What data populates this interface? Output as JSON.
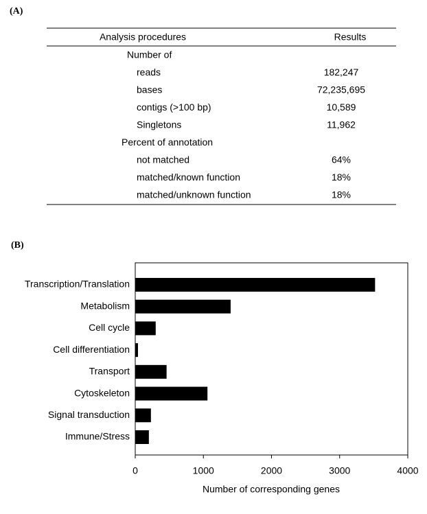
{
  "panels": {
    "a": "(A)",
    "b": "(B)"
  },
  "table": {
    "header": [
      "Analysis procedures",
      "Results"
    ],
    "rows": [
      {
        "label": "Number of"
      },
      {
        "label": "reads",
        "result": "182,247"
      },
      {
        "label": "bases",
        "result": "72,235,695"
      },
      {
        "label": "contigs (>100 bp)",
        "result": "10,589"
      },
      {
        "label": "Singletons",
        "result": "11,962"
      },
      {
        "label": "Percent of annotation"
      },
      {
        "label": "not matched",
        "result": "64%"
      },
      {
        "label": "matched/known function",
        "result": "18%"
      },
      {
        "label": "matched/unknown function",
        "result": "18%"
      }
    ]
  },
  "chart_data": {
    "type": "bar",
    "orientation": "horizontal",
    "categories": [
      "Transcription/Translation",
      "Metabolism",
      "Cell cycle",
      "Cell differentiation",
      "Transport",
      "Cytoskeleton",
      "Signal transduction",
      "Immune/Stress"
    ],
    "values": [
      3520,
      1400,
      300,
      40,
      460,
      1060,
      230,
      200
    ],
    "color": "#000000",
    "xlim": [
      0,
      4000
    ],
    "xticks": [
      0,
      1000,
      2000,
      3000,
      4000
    ],
    "xlabel": "Number of corresponding genes",
    "grid": false
  }
}
